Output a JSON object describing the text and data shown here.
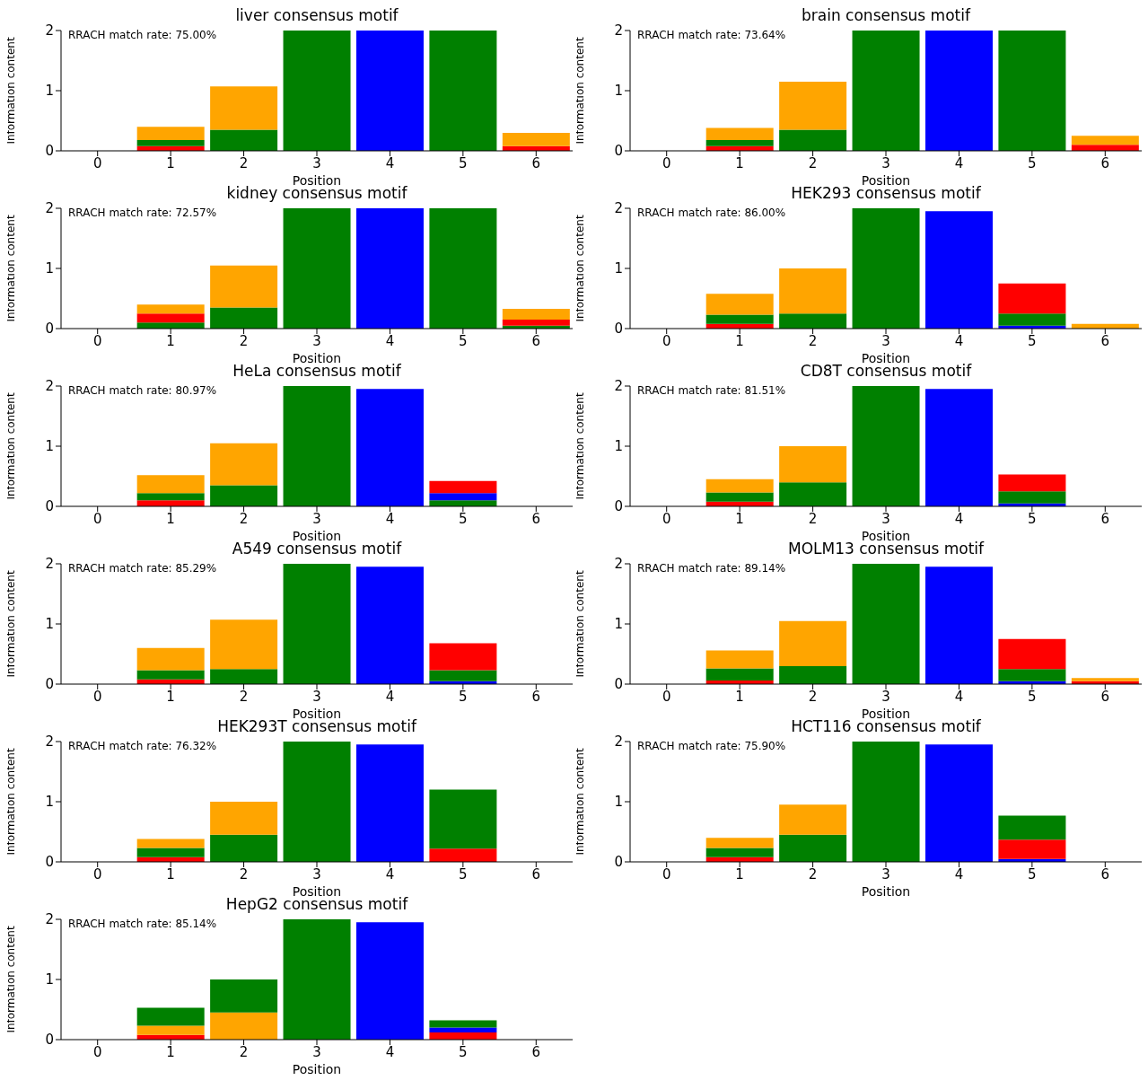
{
  "chart_data": [
    {
      "type": "bar",
      "stacked": true,
      "title": "liver consensus motif",
      "xlabel": "Position",
      "ylabel": "Information content",
      "annotations": [
        "RRACH match rate: 75.00%"
      ],
      "categories": [
        "0",
        "1",
        "2",
        "3",
        "4",
        "5",
        "6"
      ],
      "ylim": [
        0,
        2
      ],
      "yticks": [
        0,
        1,
        2
      ],
      "series": [
        {
          "values": [
            null,
            0.08,
            0.35,
            2,
            2,
            2,
            0.08
          ],
          "colors": [
            "#ff0000",
            "#ff0000",
            "#008000",
            "#008000",
            "#0000ff",
            "#008000",
            "#ff0000"
          ]
        },
        {
          "values": [
            null,
            0.1,
            0.72,
            null,
            null,
            null,
            0.22
          ],
          "colors": [
            "#008000",
            "#008000",
            "#ffa500",
            "#008000",
            "#0000ff",
            "#008000",
            "#ffa500"
          ]
        },
        {
          "values": [
            null,
            0.22,
            null,
            null,
            null,
            null,
            null
          ],
          "colors": [
            "#ffa500",
            "#ffa500",
            "#ffa500",
            "#008000",
            "#0000ff",
            "#008000",
            "#ffa500"
          ]
        }
      ]
    },
    {
      "type": "bar",
      "stacked": true,
      "title": "brain consensus motif",
      "xlabel": "Position",
      "ylabel": "Information content",
      "annotations": [
        "RRACH match rate: 73.64%"
      ],
      "categories": [
        "0",
        "1",
        "2",
        "3",
        "4",
        "5",
        "6"
      ],
      "ylim": [
        0,
        2
      ],
      "yticks": [
        0,
        1,
        2
      ],
      "series": [
        {
          "values": [
            null,
            0.08,
            0.35,
            2,
            2,
            2,
            0.1
          ],
          "colors": [
            "#ff0000",
            "#ff0000",
            "#008000",
            "#008000",
            "#0000ff",
            "#008000",
            "#ff0000"
          ]
        },
        {
          "values": [
            null,
            0.1,
            0.8,
            null,
            null,
            null,
            0.15
          ],
          "colors": [
            "#008000",
            "#008000",
            "#ffa500",
            "#008000",
            "#0000ff",
            "#008000",
            "#ffa500"
          ]
        },
        {
          "values": [
            null,
            0.2,
            null,
            null,
            null,
            null,
            null
          ],
          "colors": [
            "#ffa500",
            "#ffa500",
            "#ffa500",
            "#008000",
            "#0000ff",
            "#008000",
            "#ffa500"
          ]
        }
      ]
    },
    {
      "type": "bar",
      "stacked": true,
      "title": "kidney consensus motif",
      "xlabel": "Position",
      "ylabel": "Information content",
      "annotations": [
        "RRACH match rate: 72.57%"
      ],
      "categories": [
        "0",
        "1",
        "2",
        "3",
        "4",
        "5",
        "6"
      ],
      "ylim": [
        0,
        2
      ],
      "yticks": [
        0,
        1,
        2
      ],
      "series": [
        {
          "values": [
            null,
            0.1,
            0.35,
            2,
            2,
            2,
            0.05
          ],
          "colors": [
            "#008000",
            "#008000",
            "#008000",
            "#008000",
            "#0000ff",
            "#008000",
            "#008000"
          ]
        },
        {
          "values": [
            null,
            0.15,
            0.7,
            null,
            null,
            null,
            0.1
          ],
          "colors": [
            "#ff0000",
            "#ff0000",
            "#ffa500",
            "#008000",
            "#0000ff",
            "#008000",
            "#ff0000"
          ]
        },
        {
          "values": [
            null,
            0.15,
            null,
            null,
            null,
            null,
            0.18
          ],
          "colors": [
            "#ffa500",
            "#ffa500",
            "#ffa500",
            "#008000",
            "#0000ff",
            "#008000",
            "#ffa500"
          ]
        }
      ]
    },
    {
      "type": "bar",
      "stacked": true,
      "title": "HEK293 consensus motif",
      "xlabel": "Position",
      "ylabel": "Information content",
      "annotations": [
        "RRACH match rate: 86.00%"
      ],
      "categories": [
        "0",
        "1",
        "2",
        "3",
        "4",
        "5",
        "6"
      ],
      "ylim": [
        0,
        2
      ],
      "yticks": [
        0,
        1,
        2
      ],
      "series": [
        {
          "values": [
            null,
            0.08,
            0.25,
            2,
            1.95,
            0.05,
            0.08
          ],
          "colors": [
            "#ff0000",
            "#ff0000",
            "#008000",
            "#008000",
            "#0000ff",
            "#0000ff",
            "#ffa500"
          ]
        },
        {
          "values": [
            null,
            0.15,
            0.75,
            null,
            null,
            0.2,
            null
          ],
          "colors": [
            "#008000",
            "#008000",
            "#ffa500",
            "#008000",
            "#0000ff",
            "#008000",
            "#ffa500"
          ]
        },
        {
          "values": [
            null,
            0.35,
            null,
            null,
            null,
            0.5,
            null
          ],
          "colors": [
            "#ffa500",
            "#ffa500",
            "#ffa500",
            "#008000",
            "#0000ff",
            "#ff0000",
            "#ffa500"
          ]
        }
      ]
    },
    {
      "type": "bar",
      "stacked": true,
      "title": "HeLa consensus motif",
      "xlabel": "Position",
      "ylabel": "Information content",
      "annotations": [
        "RRACH match rate: 80.97%"
      ],
      "categories": [
        "0",
        "1",
        "2",
        "3",
        "4",
        "5",
        "6"
      ],
      "ylim": [
        0,
        2
      ],
      "yticks": [
        0,
        1,
        2
      ],
      "series": [
        {
          "values": [
            null,
            0.1,
            0.35,
            2,
            1.95,
            0.1,
            null
          ],
          "colors": [
            "#ff0000",
            "#ff0000",
            "#008000",
            "#008000",
            "#0000ff",
            "#008000",
            "#ff0000"
          ]
        },
        {
          "values": [
            null,
            0.12,
            0.7,
            null,
            null,
            0.12,
            null
          ],
          "colors": [
            "#008000",
            "#008000",
            "#ffa500",
            "#008000",
            "#0000ff",
            "#0000ff",
            "#ffa500"
          ]
        },
        {
          "values": [
            null,
            0.3,
            null,
            null,
            null,
            0.2,
            null
          ],
          "colors": [
            "#ffa500",
            "#ffa500",
            "#ffa500",
            "#008000",
            "#0000ff",
            "#ff0000",
            "#ffa500"
          ]
        }
      ]
    },
    {
      "type": "bar",
      "stacked": true,
      "title": "CD8T consensus motif",
      "xlabel": "Position",
      "ylabel": "Information content",
      "annotations": [
        "RRACH match rate: 81.51%"
      ],
      "categories": [
        "0",
        "1",
        "2",
        "3",
        "4",
        "5",
        "6"
      ],
      "ylim": [
        0,
        2
      ],
      "yticks": [
        0,
        1,
        2
      ],
      "series": [
        {
          "values": [
            null,
            0.08,
            0.4,
            2,
            1.95,
            0.05,
            null
          ],
          "colors": [
            "#ff0000",
            "#ff0000",
            "#008000",
            "#008000",
            "#0000ff",
            "#0000ff",
            "#ff0000"
          ]
        },
        {
          "values": [
            null,
            0.15,
            0.6,
            null,
            null,
            0.2,
            null
          ],
          "colors": [
            "#008000",
            "#008000",
            "#ffa500",
            "#008000",
            "#0000ff",
            "#008000",
            "#ffa500"
          ]
        },
        {
          "values": [
            null,
            0.22,
            null,
            null,
            null,
            0.28,
            null
          ],
          "colors": [
            "#ffa500",
            "#ffa500",
            "#ffa500",
            "#008000",
            "#0000ff",
            "#ff0000",
            "#ffa500"
          ]
        }
      ]
    },
    {
      "type": "bar",
      "stacked": true,
      "title": "A549 consensus motif",
      "xlabel": "Position",
      "ylabel": "Information content",
      "annotations": [
        "RRACH match rate: 85.29%"
      ],
      "categories": [
        "0",
        "1",
        "2",
        "3",
        "4",
        "5",
        "6"
      ],
      "ylim": [
        0,
        2
      ],
      "yticks": [
        0,
        1,
        2
      ],
      "series": [
        {
          "values": [
            null,
            0.08,
            0.25,
            2,
            1.95,
            0.05,
            null
          ],
          "colors": [
            "#ff0000",
            "#ff0000",
            "#008000",
            "#008000",
            "#0000ff",
            "#0000ff",
            "#ff0000"
          ]
        },
        {
          "values": [
            null,
            0.15,
            0.82,
            null,
            null,
            0.18,
            null
          ],
          "colors": [
            "#008000",
            "#008000",
            "#ffa500",
            "#008000",
            "#0000ff",
            "#008000",
            "#ffa500"
          ]
        },
        {
          "values": [
            null,
            0.37,
            null,
            null,
            null,
            0.45,
            null
          ],
          "colors": [
            "#ffa500",
            "#ffa500",
            "#ffa500",
            "#008000",
            "#0000ff",
            "#ff0000",
            "#ffa500"
          ]
        }
      ]
    },
    {
      "type": "bar",
      "stacked": true,
      "title": "MOLM13 consensus motif",
      "xlabel": "Position",
      "ylabel": "Information content",
      "annotations": [
        "RRACH match rate: 89.14%"
      ],
      "categories": [
        "0",
        "1",
        "2",
        "3",
        "4",
        "5",
        "6"
      ],
      "ylim": [
        0,
        2
      ],
      "yticks": [
        0,
        1,
        2
      ],
      "series": [
        {
          "values": [
            null,
            0.06,
            0.3,
            2,
            1.95,
            0.05,
            0.05
          ],
          "colors": [
            "#ff0000",
            "#ff0000",
            "#008000",
            "#008000",
            "#0000ff",
            "#0000ff",
            "#ff0000"
          ]
        },
        {
          "values": [
            null,
            0.2,
            0.75,
            null,
            null,
            0.2,
            0.05
          ],
          "colors": [
            "#008000",
            "#008000",
            "#ffa500",
            "#008000",
            "#0000ff",
            "#008000",
            "#ffa500"
          ]
        },
        {
          "values": [
            null,
            0.3,
            null,
            null,
            null,
            0.5,
            null
          ],
          "colors": [
            "#ffa500",
            "#ffa500",
            "#ffa500",
            "#008000",
            "#0000ff",
            "#ff0000",
            "#ffa500"
          ]
        }
      ]
    },
    {
      "type": "bar",
      "stacked": true,
      "title": "HEK293T consensus motif",
      "xlabel": "Position",
      "ylabel": "Information content",
      "annotations": [
        "RRACH match rate: 76.32%"
      ],
      "categories": [
        "0",
        "1",
        "2",
        "3",
        "4",
        "5",
        "6"
      ],
      "ylim": [
        0,
        2
      ],
      "yticks": [
        0,
        1,
        2
      ],
      "series": [
        {
          "values": [
            null,
            0.08,
            0.45,
            2,
            1.95,
            0.22,
            null
          ],
          "colors": [
            "#ff0000",
            "#ff0000",
            "#008000",
            "#008000",
            "#0000ff",
            "#ff0000",
            "#ff0000"
          ]
        },
        {
          "values": [
            null,
            0.15,
            0.55,
            null,
            null,
            0.98,
            null
          ],
          "colors": [
            "#008000",
            "#008000",
            "#ffa500",
            "#008000",
            "#0000ff",
            "#008000",
            "#ffa500"
          ]
        },
        {
          "values": [
            null,
            0.15,
            null,
            null,
            null,
            null,
            null
          ],
          "colors": [
            "#ffa500",
            "#ffa500",
            "#ffa500",
            "#008000",
            "#0000ff",
            "#008000",
            "#ffa500"
          ]
        }
      ]
    },
    {
      "type": "bar",
      "stacked": true,
      "title": "HCT116 consensus motif",
      "xlabel": "Position",
      "ylabel": "Information content",
      "annotations": [
        "RRACH match rate: 75.90%"
      ],
      "categories": [
        "0",
        "1",
        "2",
        "3",
        "4",
        "5",
        "6"
      ],
      "ylim": [
        0,
        2
      ],
      "yticks": [
        0,
        1,
        2
      ],
      "series": [
        {
          "values": [
            null,
            0.08,
            0.45,
            2,
            1.95,
            0.05,
            null
          ],
          "colors": [
            "#ff0000",
            "#ff0000",
            "#008000",
            "#008000",
            "#0000ff",
            "#0000ff",
            "#ff0000"
          ]
        },
        {
          "values": [
            null,
            0.15,
            0.5,
            null,
            null,
            0.32,
            null
          ],
          "colors": [
            "#008000",
            "#008000",
            "#ffa500",
            "#008000",
            "#0000ff",
            "#ff0000",
            "#ffa500"
          ]
        },
        {
          "values": [
            null,
            0.17,
            null,
            null,
            null,
            0.4,
            null
          ],
          "colors": [
            "#ffa500",
            "#ffa500",
            "#ffa500",
            "#008000",
            "#0000ff",
            "#008000",
            "#ffa500"
          ]
        }
      ]
    },
    {
      "type": "bar",
      "stacked": true,
      "title": "HepG2 consensus motif",
      "xlabel": "Position",
      "ylabel": "Information content",
      "annotations": [
        "RRACH match rate: 85.14%"
      ],
      "categories": [
        "0",
        "1",
        "2",
        "3",
        "4",
        "5",
        "6"
      ],
      "ylim": [
        0,
        2
      ],
      "yticks": [
        0,
        1,
        2
      ],
      "series": [
        {
          "values": [
            null,
            0.08,
            0.45,
            2,
            1.95,
            0.12,
            null
          ],
          "colors": [
            "#ff0000",
            "#ff0000",
            "#ffa500",
            "#008000",
            "#0000ff",
            "#ff0000",
            "#ff0000"
          ]
        },
        {
          "values": [
            null,
            0.15,
            0.55,
            null,
            null,
            0.08,
            null
          ],
          "colors": [
            "#ffa500",
            "#ffa500",
            "#008000",
            "#008000",
            "#0000ff",
            "#0000ff",
            "#ffa500"
          ]
        },
        {
          "values": [
            null,
            0.3,
            null,
            null,
            null,
            0.12,
            null
          ],
          "colors": [
            "#008000",
            "#008000",
            "#008000",
            "#008000",
            "#0000ff",
            "#008000",
            "#008000"
          ]
        }
      ]
    }
  ]
}
